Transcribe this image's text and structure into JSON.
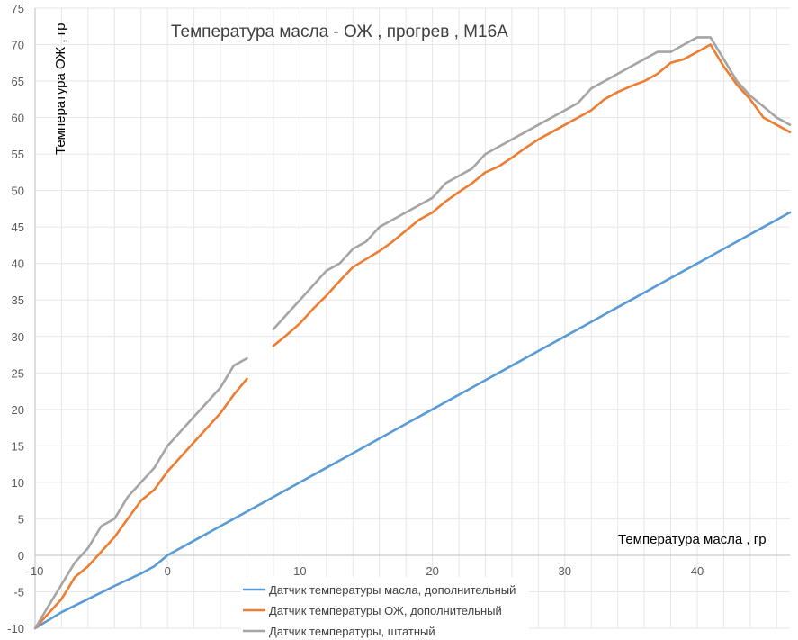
{
  "chart_data": {
    "type": "line",
    "title": "Температура масла - ОЖ , прогрев , М16А",
    "xlabel": "Температура масла , гр",
    "ylabel": "Температура ОЖ , гр",
    "xlim": [
      -10,
      47
    ],
    "ylim": [
      -10,
      75
    ],
    "x_ticks": [
      -10,
      0,
      10,
      20,
      30,
      40
    ],
    "y_ticks": [
      75,
      70,
      65,
      60,
      55,
      50,
      45,
      40,
      35,
      30,
      25,
      20,
      15,
      10,
      5,
      0,
      -5,
      -10
    ],
    "grid": true,
    "legend_position": "bottom-center",
    "series": [
      {
        "name": "Датчик температуры масла, дополнительный",
        "color": "#5b9bd5",
        "points": [
          [
            -10,
            -10
          ],
          [
            -8,
            -7.8
          ],
          [
            -6,
            -6
          ],
          [
            -4,
            -4.2
          ],
          [
            -2,
            -2.5
          ],
          [
            -1,
            -1.5
          ],
          [
            0,
            0
          ],
          [
            2,
            2
          ],
          [
            4,
            4
          ],
          [
            6,
            6
          ],
          [
            8,
            8
          ],
          [
            10,
            10
          ],
          [
            12,
            12
          ],
          [
            14,
            14
          ],
          [
            16,
            16
          ],
          [
            18,
            18
          ],
          [
            20,
            20
          ],
          [
            22,
            22
          ],
          [
            24,
            24
          ],
          [
            25,
            25
          ],
          [
            26,
            26
          ],
          [
            28,
            28
          ],
          [
            30,
            30
          ],
          [
            32,
            32
          ],
          [
            33,
            33
          ],
          [
            35,
            35
          ],
          [
            36,
            36
          ],
          [
            38,
            38
          ],
          [
            40,
            40
          ],
          [
            41,
            41
          ],
          [
            43,
            43
          ],
          [
            45,
            45
          ],
          [
            47,
            47
          ]
        ]
      },
      {
        "name": "Датчик температуры ОЖ, дополнительный",
        "color": "#ed7d31",
        "segments": [
          [
            [
              -10,
              -10
            ],
            [
              -9,
              -8
            ],
            [
              -8,
              -6
            ],
            [
              -7,
              -3
            ],
            [
              -6,
              -1.5
            ],
            [
              -5,
              0.5
            ],
            [
              -4,
              2.5
            ],
            [
              -3,
              5
            ],
            [
              -2,
              7.5
            ],
            [
              -1,
              9
            ],
            [
              0,
              11.5
            ],
            [
              1,
              13.5
            ],
            [
              2,
              15.5
            ],
            [
              3,
              17.5
            ],
            [
              4,
              19.5
            ],
            [
              5,
              22
            ],
            [
              6,
              24.2
            ]
          ],
          [
            [
              8,
              28.7
            ],
            [
              9,
              30.2
            ],
            [
              10,
              31.8
            ],
            [
              11,
              33.8
            ],
            [
              12,
              35.6
            ],
            [
              13,
              37.6
            ],
            [
              14,
              39.5
            ],
            [
              15,
              40.6
            ],
            [
              16,
              41.7
            ],
            [
              17,
              43
            ],
            [
              18,
              44.5
            ],
            [
              19,
              46
            ],
            [
              20,
              47
            ],
            [
              21,
              48.5
            ],
            [
              22,
              49.8
            ],
            [
              23,
              51
            ],
            [
              24,
              52.5
            ],
            [
              25,
              53.3
            ],
            [
              26,
              54.5
            ],
            [
              27,
              55.8
            ],
            [
              28,
              57
            ],
            [
              29,
              58
            ],
            [
              30,
              59
            ],
            [
              31,
              60
            ],
            [
              32,
              61
            ],
            [
              33,
              62.5
            ],
            [
              34,
              63.5
            ],
            [
              35,
              64.3
            ],
            [
              36,
              65
            ],
            [
              37,
              66
            ],
            [
              38,
              67.5
            ],
            [
              39,
              68
            ],
            [
              40,
              69
            ],
            [
              41,
              70
            ],
            [
              42,
              67
            ],
            [
              43,
              64.5
            ],
            [
              44,
              62.5
            ],
            [
              45,
              60
            ],
            [
              46,
              59
            ],
            [
              47,
              58
            ]
          ]
        ]
      },
      {
        "name": "Датчик температуры, штатный",
        "color": "#a5a5a5",
        "segments": [
          [
            [
              -10,
              -10
            ],
            [
              -9,
              -7
            ],
            [
              -8,
              -4
            ],
            [
              -7,
              -1
            ],
            [
              -6,
              1
            ],
            [
              -5,
              4
            ],
            [
              -4,
              5
            ],
            [
              -3,
              8
            ],
            [
              -2,
              10
            ],
            [
              -1,
              12
            ],
            [
              0,
              15
            ],
            [
              1,
              17
            ],
            [
              2,
              19
            ],
            [
              3,
              21
            ],
            [
              4,
              23
            ],
            [
              5,
              26
            ],
            [
              6,
              27
            ]
          ],
          [
            [
              8,
              31
            ],
            [
              9,
              33
            ],
            [
              10,
              35
            ],
            [
              11,
              37
            ],
            [
              12,
              39
            ],
            [
              13,
              40
            ],
            [
              14,
              42
            ],
            [
              15,
              43
            ],
            [
              16,
              45
            ],
            [
              17,
              46
            ],
            [
              18,
              47
            ],
            [
              19,
              48
            ],
            [
              20,
              49
            ],
            [
              21,
              51
            ],
            [
              22,
              52
            ],
            [
              23,
              53
            ],
            [
              24,
              55
            ],
            [
              25,
              56
            ],
            [
              26,
              57
            ],
            [
              27,
              58
            ],
            [
              28,
              59
            ],
            [
              29,
              60
            ],
            [
              30,
              61
            ],
            [
              31,
              62
            ],
            [
              32,
              64
            ],
            [
              33,
              65
            ],
            [
              34,
              66
            ],
            [
              35,
              67
            ],
            [
              36,
              68
            ],
            [
              37,
              69
            ],
            [
              38,
              69
            ],
            [
              39,
              70
            ],
            [
              40,
              71
            ],
            [
              41,
              71
            ],
            [
              42,
              68
            ],
            [
              43,
              65
            ],
            [
              44,
              63
            ],
            [
              45,
              61.5
            ],
            [
              46,
              60
            ],
            [
              47,
              59
            ]
          ]
        ]
      }
    ]
  }
}
